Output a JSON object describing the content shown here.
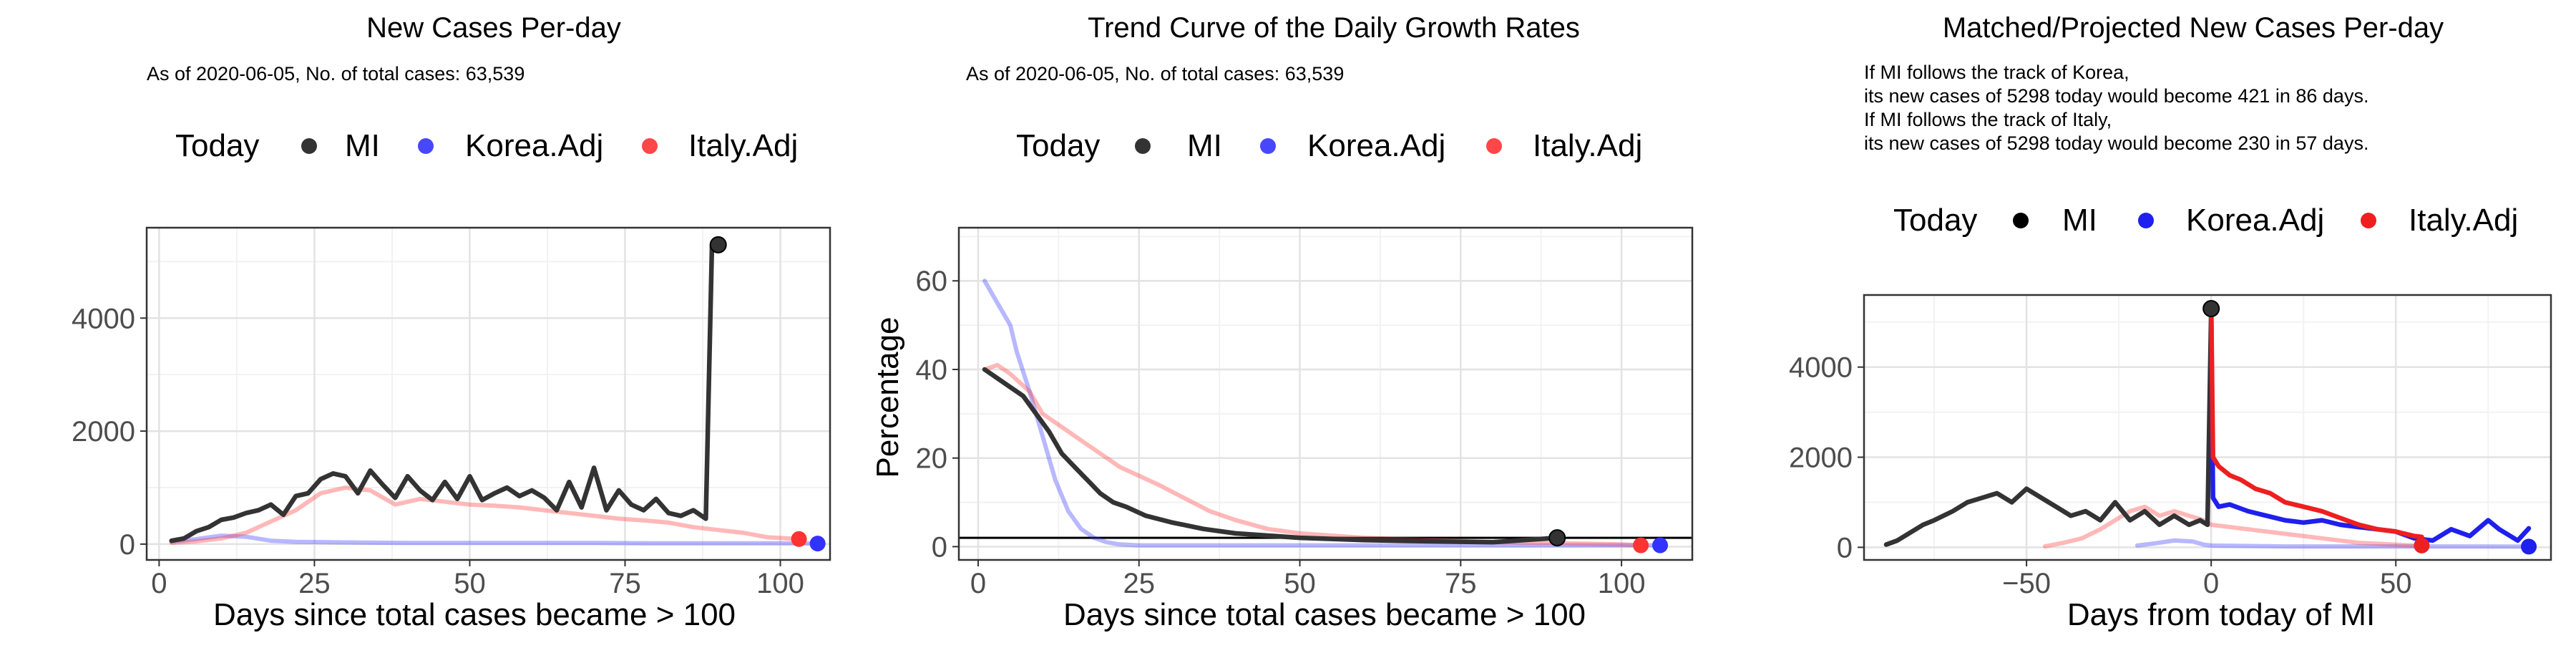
{
  "legend": {
    "today_label": "Today",
    "items": [
      {
        "label": "MI",
        "color": "#333333"
      },
      {
        "label": "Korea.Adj",
        "color": "#3333ff"
      },
      {
        "label": "Italy.Adj",
        "color": "#ff3333"
      }
    ]
  },
  "legend3": {
    "today_label": "Today",
    "items": [
      {
        "label": "MI",
        "color": "#000000"
      },
      {
        "label": "Korea.Adj",
        "color": "#1f1fee"
      },
      {
        "label": "Italy.Adj",
        "color": "#ee1f1f"
      }
    ]
  },
  "chart_data": [
    {
      "type": "line",
      "title": "New Cases Per-day",
      "subtitle": "As of 2020-06-05, No. of total cases: 63,539",
      "xlabel": "Days since total cases became > 100",
      "ylabel": "",
      "xlim": [
        -2,
        108
      ],
      "ylim": [
        -280,
        5600
      ],
      "xticks": [
        0,
        25,
        50,
        75,
        100
      ],
      "yticks": [
        0,
        2000,
        4000
      ],
      "grid": true,
      "legend_position": "top",
      "series": [
        {
          "name": "MI",
          "color": "#333333",
          "x": [
            2,
            4,
            6,
            8,
            10,
            12,
            14,
            16,
            18,
            20,
            22,
            24,
            26,
            28,
            30,
            32,
            34,
            36,
            38,
            40,
            42,
            44,
            46,
            48,
            50,
            52,
            54,
            56,
            58,
            60,
            62,
            64,
            66,
            68,
            70,
            72,
            74,
            76,
            78,
            80,
            82,
            84,
            86,
            88,
            89,
            90
          ],
          "y": [
            60,
            100,
            230,
            300,
            430,
            470,
            550,
            600,
            700,
            520,
            850,
            900,
            1150,
            1250,
            1200,
            900,
            1300,
            1050,
            820,
            1200,
            950,
            780,
            1100,
            800,
            1200,
            780,
            900,
            1000,
            850,
            950,
            820,
            600,
            1100,
            650,
            1350,
            600,
            950,
            700,
            600,
            800,
            550,
            500,
            600,
            450,
            5298,
            5298
          ]
        },
        {
          "name": "Korea.Adj",
          "color": "#3333ff",
          "alpha": 0.35,
          "x": [
            2,
            6,
            10,
            14,
            18,
            22,
            30,
            40,
            50,
            60,
            70,
            80,
            90,
            100,
            106
          ],
          "y": [
            40,
            90,
            150,
            130,
            60,
            40,
            30,
            20,
            20,
            20,
            20,
            15,
            15,
            15,
            10
          ]
        },
        {
          "name": "Italy.Adj",
          "color": "#ff3333",
          "alpha": 0.35,
          "x": [
            2,
            6,
            10,
            14,
            18,
            22,
            26,
            30,
            34,
            38,
            42,
            46,
            50,
            54,
            58,
            62,
            66,
            70,
            74,
            78,
            82,
            86,
            90,
            94,
            98,
            103
          ],
          "y": [
            20,
            50,
            100,
            200,
            400,
            600,
            900,
            1000,
            950,
            700,
            800,
            750,
            700,
            680,
            650,
            600,
            550,
            500,
            450,
            420,
            380,
            300,
            250,
            200,
            120,
            90
          ]
        }
      ],
      "today_points": [
        {
          "series": "MI",
          "x": 90,
          "y": 5298
        },
        {
          "series": "Korea.Adj",
          "x": 106,
          "y": 10
        },
        {
          "series": "Italy.Adj",
          "x": 103,
          "y": 90
        }
      ]
    },
    {
      "type": "line",
      "title": "Trend Curve of the Daily Growth Rates",
      "subtitle": "As of 2020-06-05, No. of total cases: 63,539",
      "xlabel": "Days since total cases became > 100",
      "ylabel": "Percentage",
      "xlim": [
        -3,
        111
      ],
      "ylim": [
        -3,
        72
      ],
      "xticks": [
        0,
        25,
        50,
        75,
        100
      ],
      "yticks": [
        0,
        20,
        40,
        60
      ],
      "grid": true,
      "hline": 2,
      "legend_position": "top",
      "series": [
        {
          "name": "Korea.Adj",
          "color": "#3333ff",
          "alpha": 0.35,
          "x": [
            1,
            3,
            5,
            6,
            8,
            10,
            12,
            14,
            16,
            18,
            20,
            22,
            25,
            30,
            40,
            60,
            80,
            100,
            106
          ],
          "y": [
            60,
            55,
            50,
            44,
            35,
            25,
            15,
            8,
            4,
            2,
            1,
            0.5,
            0.3,
            0.3,
            0.3,
            0.3,
            0.3,
            0.3,
            0.3
          ]
        },
        {
          "name": "Italy.Adj",
          "color": "#ff3333",
          "alpha": 0.35,
          "x": [
            1,
            3,
            5,
            8,
            10,
            12,
            14,
            16,
            18,
            20,
            22,
            25,
            28,
            32,
            36,
            40,
            45,
            50,
            55,
            60,
            70,
            80,
            90,
            100,
            103
          ],
          "y": [
            40,
            41,
            39,
            35,
            30,
            28,
            26,
            24,
            22,
            20,
            18,
            16,
            14,
            11,
            8,
            6,
            4,
            3,
            2.5,
            2,
            1.5,
            1,
            0.8,
            0.5,
            0.3
          ]
        },
        {
          "name": "MI",
          "color": "#333333",
          "x": [
            1,
            3,
            5,
            7,
            9,
            11,
            13,
            15,
            17,
            19,
            21,
            23,
            26,
            30,
            35,
            40,
            45,
            50,
            60,
            70,
            80,
            90
          ],
          "y": [
            40,
            38,
            36,
            34,
            30,
            26,
            21,
            18,
            15,
            12,
            10,
            9,
            7,
            5.5,
            4,
            3,
            2.5,
            2,
            1.5,
            1.2,
            1,
            2
          ]
        }
      ],
      "today_points": [
        {
          "series": "MI",
          "x": 90,
          "y": 2
        },
        {
          "series": "Korea.Adj",
          "x": 106,
          "y": 0.3
        },
        {
          "series": "Italy.Adj",
          "x": 103,
          "y": 0.3
        }
      ]
    },
    {
      "type": "line",
      "title": "Matched/Projected New Cases Per-day",
      "annotation": [
        "If MI follows the track of Korea,",
        "its new cases of 5298 today would become 421 in 86 days.",
        "If MI follows the track of Italy,",
        "its new cases of 5298 today would become 230 in 57 days."
      ],
      "xlabel": "Days from today of MI",
      "ylabel": "",
      "xlim": [
        -94,
        92
      ],
      "ylim": [
        -280,
        5600
      ],
      "xticks": [
        -50,
        0,
        50
      ],
      "yticks": [
        0,
        2000,
        4000
      ],
      "grid": true,
      "legend_position": "top",
      "series": [
        {
          "name": "MI",
          "color": "#333333",
          "x": [
            -88,
            -85,
            -82,
            -78,
            -75,
            -70,
            -66,
            -62,
            -58,
            -54,
            -50,
            -46,
            -42,
            -38,
            -34,
            -30,
            -26,
            -22,
            -18,
            -14,
            -10,
            -6,
            -3,
            -1,
            0
          ],
          "y": [
            60,
            150,
            300,
            500,
            600,
            800,
            1000,
            1100,
            1200,
            1000,
            1300,
            1100,
            900,
            700,
            800,
            600,
            1000,
            600,
            800,
            500,
            700,
            500,
            600,
            500,
            5298
          ]
        },
        {
          "name": "Korea.Adj",
          "color": "#1f1fee",
          "x": [
            0,
            0.5,
            2,
            5,
            10,
            15,
            20,
            25,
            30,
            35,
            40,
            45,
            50,
            55,
            60,
            65,
            70,
            75,
            78,
            80,
            83,
            86
          ],
          "y": [
            5298,
            1100,
            900,
            950,
            800,
            700,
            600,
            550,
            600,
            500,
            450,
            400,
            350,
            200,
            150,
            400,
            250,
            600,
            400,
            300,
            150,
            421
          ]
        },
        {
          "name": "Italy.Adj",
          "color": "#ee1f1f",
          "x": [
            0,
            0.5,
            2,
            5,
            8,
            12,
            16,
            20,
            25,
            30,
            35,
            40,
            45,
            50,
            55,
            57
          ],
          "y": [
            5298,
            2000,
            1800,
            1600,
            1500,
            1300,
            1200,
            1000,
            900,
            800,
            650,
            500,
            400,
            350,
            250,
            230
          ]
        },
        {
          "name": "Korea.Adj (matched)",
          "color": "#3333ff",
          "alpha": 0.35,
          "x": [
            -20,
            -15,
            -10,
            -5,
            -2,
            0,
            10,
            20,
            40,
            60,
            86
          ],
          "y": [
            40,
            90,
            150,
            130,
            60,
            40,
            30,
            20,
            20,
            20,
            15
          ]
        },
        {
          "name": "Italy.Adj (matched)",
          "color": "#ff3333",
          "alpha": 0.35,
          "x": [
            -45,
            -40,
            -35,
            -30,
            -26,
            -22,
            -18,
            -14,
            -10,
            -6,
            -2,
            0,
            10,
            20,
            30,
            40,
            50,
            57
          ],
          "y": [
            20,
            100,
            200,
            400,
            600,
            800,
            900,
            700,
            800,
            700,
            600,
            500,
            400,
            300,
            200,
            100,
            60,
            30
          ]
        }
      ],
      "today_points": [
        {
          "series": "MI",
          "x": 0,
          "y": 5298
        },
        {
          "series": "Korea.Adj",
          "x": 86,
          "y": 15
        },
        {
          "series": "Italy.Adj",
          "x": 57,
          "y": 40
        }
      ]
    }
  ]
}
